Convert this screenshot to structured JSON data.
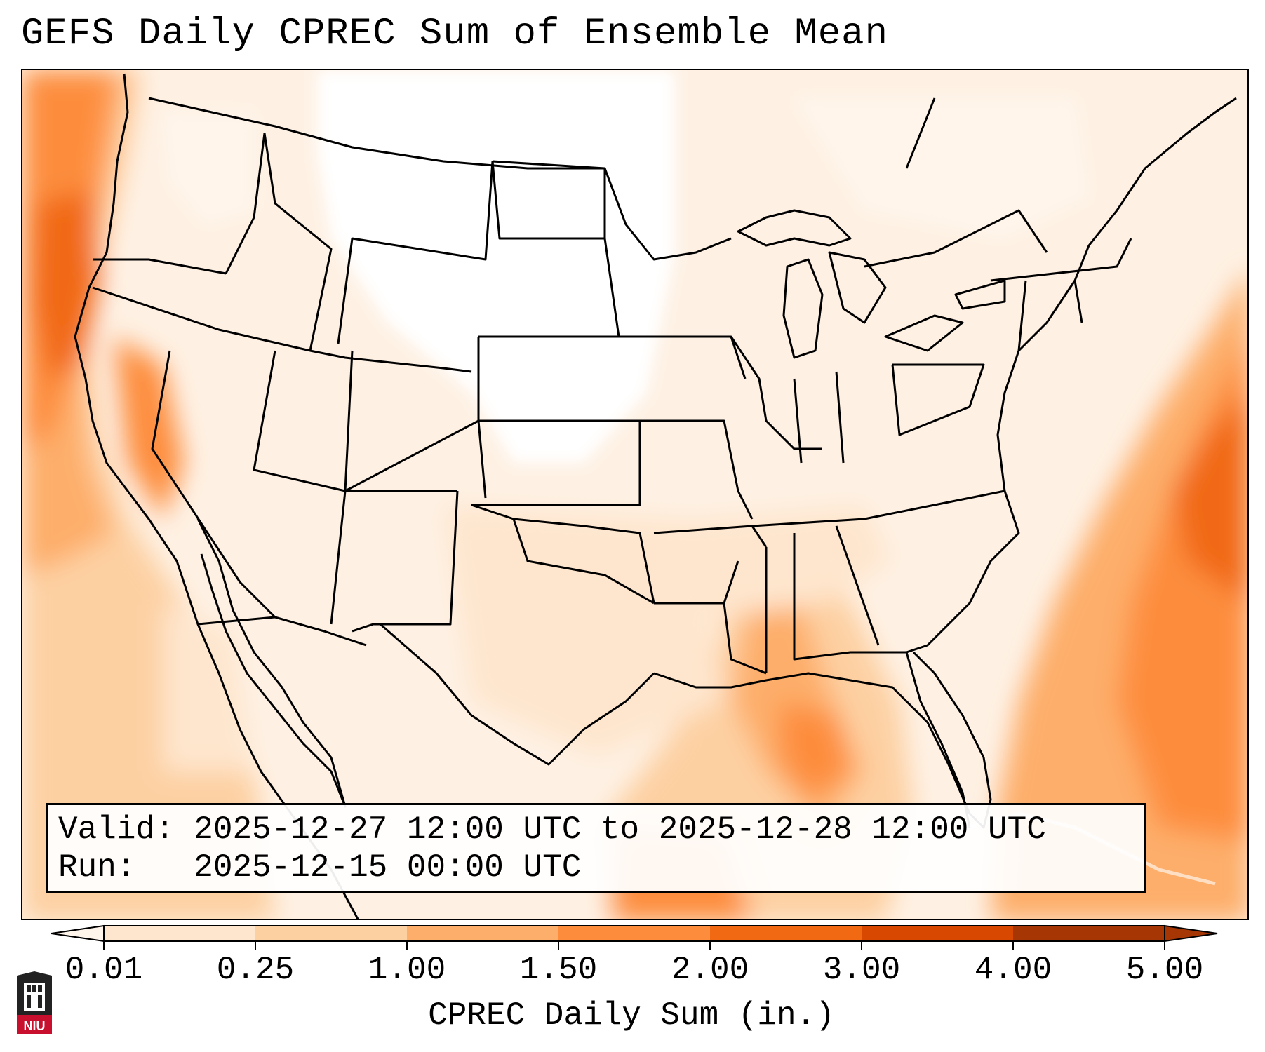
{
  "title": "GEFS Daily CPREC Sum of Ensemble Mean",
  "info": {
    "valid": "Valid: 2025-12-27 12:00 UTC to 2025-12-28 12:00 UTC",
    "run": "Run:   2025-12-15 00:00 UTC"
  },
  "colorbar": {
    "label": "CPREC Daily Sum (in.)",
    "ticks": [
      "0.01",
      "0.25",
      "1.00",
      "1.50",
      "2.00",
      "3.00",
      "4.00",
      "5.00"
    ],
    "colors": [
      "#fff5eb",
      "#fee6ce",
      "#fdd0a2",
      "#fdae6b",
      "#fd8d3c",
      "#f16913",
      "#d94801",
      "#a63603"
    ]
  },
  "logo": {
    "text": "NIU"
  }
}
